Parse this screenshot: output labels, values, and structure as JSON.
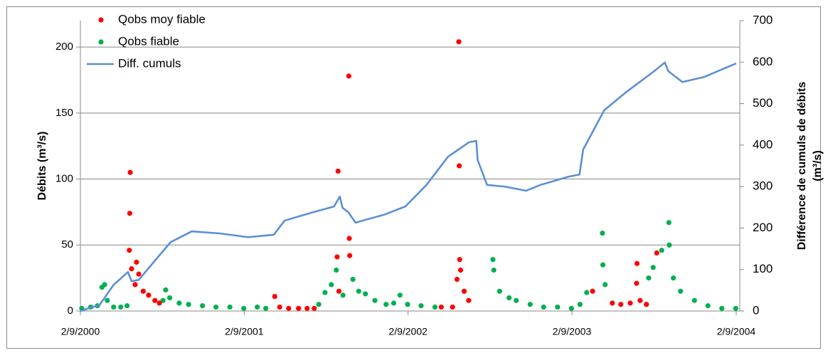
{
  "chart_data": {
    "type": "combo",
    "y_label": "Débits (m³/s)",
    "y2_label": [
      "Différence de cumuls de débits",
      "(m³/s)"
    ],
    "xlim": [
      "2/9/2000",
      "10/9/2004"
    ],
    "xticks": [
      "2/9/2000",
      "2/9/2001",
      "2/9/2002",
      "2/9/2003",
      "2/9/2004"
    ],
    "ylim": [
      0,
      220
    ],
    "yticks": [
      0,
      50,
      100,
      150,
      200
    ],
    "y2lim": [
      0,
      700
    ],
    "y2ticks": [
      0,
      100,
      200,
      300,
      400,
      500,
      600,
      700
    ],
    "grid": true,
    "legend": "top-left",
    "series": [
      {
        "name": "Qobs fiable",
        "type": "scatter",
        "color": "#00b050",
        "x": [
          "5/9/2000",
          "25/9/2000",
          "10/10/2000",
          "20/10/2000",
          "26/10/2000",
          "1/11/2000",
          "15/11/2000",
          "1/12/2000",
          "15/12/2000",
          "5/3/2001",
          "11/3/2001",
          "20/3/2001",
          "10/4/2001",
          "1/5/2001",
          "1/6/2001",
          "1/7/2001",
          "1/8/2001",
          "1/9/2001",
          "1/10/2001",
          "20/10/2001",
          "15/2/2002",
          "1/3/2002",
          "15/3/2002",
          "26/3/2002",
          "10/4/2002",
          "2/5/2002",
          "15/5/2002",
          "30/5/2002",
          "20/6/2002",
          "15/7/2002",
          "1/8/2002",
          "15/8/2002",
          "1/9/2002",
          "1/10/2002",
          "1/11/2002",
          "10/3/2003",
          "12/3/2003",
          "25/3/2003",
          "15/4/2003",
          "1/5/2003",
          "1/6/2003",
          "1/7/2003",
          "1/8/2003",
          "1/9/2003",
          "20/9/2003",
          "5/10/2003",
          "9/11/2003",
          "10/11/2003",
          "15/11/2003",
          "20/2/2004",
          "1/3/2004",
          "20/3/2004",
          "5/4/2004",
          "6/4/2004",
          "15/4/2004",
          "1/5/2004",
          "1/6/2004",
          "1/7/2004",
          "1/8/2004",
          "1/9/2004"
        ],
        "values": [
          2,
          3,
          4,
          18,
          20,
          8,
          3,
          3,
          4,
          8,
          16,
          10,
          6,
          5,
          4,
          3,
          3,
          2,
          3,
          2,
          5,
          14,
          20,
          31,
          12,
          24,
          15,
          13,
          8,
          5,
          6,
          12,
          5,
          4,
          3,
          39,
          31,
          15,
          10,
          8,
          5,
          3,
          3,
          2,
          5,
          14,
          59,
          35,
          20,
          25,
          33,
          46,
          67,
          50,
          25,
          15,
          8,
          4,
          2,
          2
        ]
      },
      {
        "name": "Qobs moy fiable",
        "type": "scatter",
        "color": "#ff0000",
        "x": [
          "20/12/2000",
          "21/12/2000",
          "22/12/2000",
          "25/12/2000",
          "2/1/2001",
          "5/1/2001",
          "10/1/2001",
          "20/1/2001",
          "1/2/2001",
          "15/2/2001",
          "25/2/2001",
          "9/11/2001",
          "20/11/2001",
          "10/12/2001",
          "1/1/2002",
          "20/1/2002",
          "5/2/2002",
          "28/3/2002",
          "30/3/2002",
          "1/4/2002",
          "23/4/2002",
          "24/4/2002",
          "25/4/2002",
          "15/11/2002",
          "10/12/2002",
          "20/12/2002",
          "24/12/2002",
          "25/12/2002",
          "26/12/2002",
          "28/12/2002",
          "5/1/2003",
          "15/1/2003",
          "18/10/2003",
          "1/12/2003",
          "20/12/2003",
          "10/1/2004",
          "24/1/2004",
          "25/1/2004",
          "1/2/2004",
          "15/2/2004",
          "9/3/2004"
        ],
        "values": [
          46,
          74,
          105,
          32,
          20,
          37,
          28,
          15,
          12,
          8,
          6,
          11,
          3,
          2,
          2,
          2,
          2,
          41,
          106,
          15,
          178,
          55,
          42,
          3,
          3,
          24,
          204,
          110,
          39,
          31,
          15,
          8,
          15,
          6,
          5,
          6,
          21,
          36,
          8,
          5,
          44
        ]
      },
      {
        "name": "Diff. cumuls",
        "type": "line",
        "axis": "y2",
        "color": "#5b8fd6",
        "x": [
          "2/9/2000",
          "15/10/2000",
          "15/11/2000",
          "17/12/2000",
          "25/12/2000",
          "10/1/2001",
          "3/2/2001",
          "22/3/2001",
          "8/5/2001",
          "10/7/2001",
          "11/9/2001",
          "7/11/2001",
          "1/12/2001",
          "2/2/2002",
          "21/3/2002",
          "3/4/2002",
          "9/4/2002",
          "22/4/2002",
          "8/5/2002",
          "24/5/2002",
          "10/7/2002",
          "27/8/2002",
          "13/10/2002",
          "30/11/2002",
          "16/1/2003",
          "1/2/2003",
          "4/2/2003",
          "25/2/2003",
          "5/4/2003",
          "23/5/2003",
          "24/6/2003",
          "26/8/2003",
          "19/9/2003",
          "27/9/2003",
          "13/11/2003",
          "31/12/2003",
          "3/3/2004",
          "27/3/2004",
          "4/4/2004",
          "5/5/2004",
          "22/6/2004",
          "2/9/2004"
        ],
        "values": [
          0,
          15,
          63,
          94,
          72,
          75,
          106,
          166,
          192,
          187,
          178,
          184,
          218,
          238,
          252,
          276,
          249,
          238,
          213,
          218,
          232,
          252,
          304,
          372,
          407,
          410,
          364,
          304,
          300,
          290,
          304,
          324,
          329,
          389,
          484,
          527,
          578,
          599,
          578,
          552,
          564,
          597
        ]
      }
    ]
  }
}
